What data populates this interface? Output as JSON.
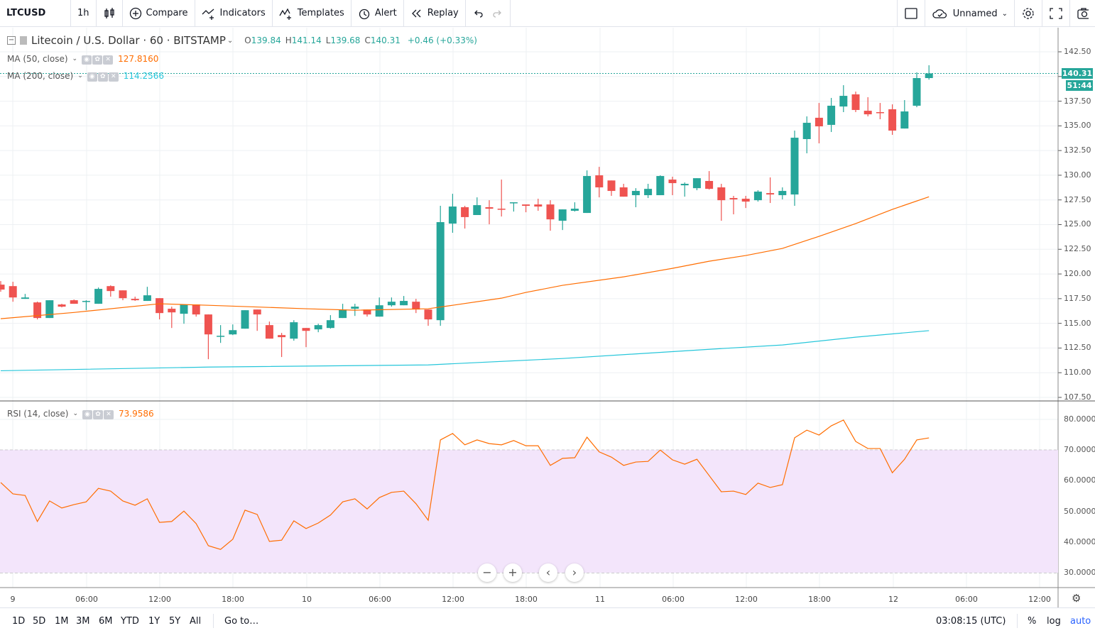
{
  "toolbar": {
    "symbol": "LTCUSD",
    "interval": "1h",
    "compare": "Compare",
    "indicators": "Indicators",
    "templates": "Templates",
    "alert": "Alert",
    "replay": "Replay",
    "layout_name": "Unnamed"
  },
  "legend": {
    "title": "Litecoin / U.S. Dollar · 60 · BITSTAMP",
    "o_label": "O",
    "o": "139.84",
    "h_label": "H",
    "h": "141.14",
    "l_label": "L",
    "l": "139.68",
    "c_label": "C",
    "c": "140.31",
    "change": "+0.46 (+0.33%)",
    "ma50": {
      "label": "MA (50, close)",
      "value": "127.8160",
      "color": "#ff6d00"
    },
    "ma200": {
      "label": "MA (200, close)",
      "value": "114.2566",
      "color": "#26c6da"
    },
    "rsi": {
      "label": "RSI (14, close)",
      "value": "73.9586",
      "color": "#ff6d00"
    }
  },
  "price_axis": [
    "142.50",
    "140.00",
    "137.50",
    "135.00",
    "132.50",
    "130.00",
    "127.50",
    "125.00",
    "122.50",
    "120.00",
    "117.50",
    "115.00",
    "112.50",
    "110.00",
    "107.50"
  ],
  "rsi_axis": [
    "80.0000",
    "70.0000",
    "60.0000",
    "50.0000",
    "40.0000",
    "30.0000"
  ],
  "last_price": {
    "value": "140.31",
    "countdown": "51:44"
  },
  "time_axis": [
    "9",
    "06:00",
    "12:00",
    "18:00",
    "10",
    "06:00",
    "12:00",
    "18:00",
    "11",
    "06:00",
    "12:00",
    "18:00",
    "12",
    "06:00",
    "12:00"
  ],
  "colors": {
    "up": "#26a69a",
    "down": "#ef5350",
    "rsi_band": "#f3e5fb"
  },
  "chart_data": {
    "type": "candlestick",
    "interval": "60",
    "first_candle": "8 23:00",
    "price_range": [
      107.5,
      142.5
    ],
    "ohlc": [
      [
        118.92,
        119.28,
        118.2,
        118.42
      ],
      [
        118.77,
        119.21,
        117.19,
        117.62
      ],
      [
        117.48,
        117.98,
        117.48,
        117.62
      ],
      [
        117.12,
        117.2,
        115.4,
        115.54
      ],
      [
        115.54,
        117.34,
        115.54,
        117.34
      ],
      [
        116.91,
        116.98,
        116.62,
        116.69
      ],
      [
        117.34,
        117.41,
        116.98,
        116.98
      ],
      [
        117.19,
        117.34,
        116.33,
        117.27
      ],
      [
        116.98,
        118.63,
        116.98,
        118.49
      ],
      [
        118.77,
        118.85,
        117.7,
        118.27
      ],
      [
        118.34,
        118.34,
        117.34,
        117.55
      ],
      [
        117.48,
        117.7,
        117.27,
        117.34
      ],
      [
        117.27,
        118.7,
        117.27,
        117.84
      ],
      [
        117.55,
        117.55,
        115.4,
        116.04
      ],
      [
        116.48,
        116.69,
        114.53,
        116.11
      ],
      [
        115.97,
        116.91,
        114.96,
        116.91
      ],
      [
        116.91,
        116.91,
        115.68,
        115.9
      ],
      [
        115.9,
        115.9,
        111.37,
        113.88
      ],
      [
        113.67,
        114.82,
        113.02,
        113.74
      ],
      [
        113.88,
        114.89,
        113.81,
        114.31
      ],
      [
        114.46,
        116.33,
        114.46,
        116.33
      ],
      [
        116.4,
        116.4,
        114.24,
        115.9
      ],
      [
        114.82,
        115.18,
        113.45,
        113.45
      ],
      [
        113.81,
        114.03,
        111.59,
        113.6
      ],
      [
        113.45,
        115.32,
        113.24,
        115.11
      ],
      [
        114.53,
        114.53,
        112.59,
        114.24
      ],
      [
        114.39,
        114.96,
        114.1,
        114.82
      ],
      [
        114.53,
        115.83,
        114.46,
        115.32
      ],
      [
        115.54,
        116.98,
        115.54,
        116.4
      ],
      [
        116.48,
        116.98,
        115.75,
        116.69
      ],
      [
        116.4,
        116.4,
        115.68,
        115.9
      ],
      [
        115.68,
        117.62,
        115.68,
        116.83
      ],
      [
        116.83,
        117.62,
        116.69,
        117.19
      ],
      [
        116.83,
        117.77,
        116.83,
        117.27
      ],
      [
        117.19,
        117.48,
        116.04,
        116.4
      ],
      [
        116.4,
        116.4,
        114.75,
        115.4
      ],
      [
        115.32,
        126.9,
        114.75,
        125.25
      ],
      [
        125.1,
        128.12,
        124.17,
        126.83
      ],
      [
        126.76,
        126.9,
        124.6,
        125.76
      ],
      [
        125.97,
        127.76,
        125.97,
        126.97
      ],
      [
        126.76,
        127.47,
        125.03,
        126.61
      ],
      [
        126.61,
        129.56,
        125.82,
        126.54
      ],
      [
        127.19,
        127.26,
        126.32,
        127.26
      ],
      [
        127.04,
        127.04,
        126.25,
        126.9
      ],
      [
        127.04,
        127.62,
        126.4,
        126.83
      ],
      [
        127.04,
        127.47,
        124.38,
        125.53
      ],
      [
        125.39,
        126.54,
        124.45,
        126.54
      ],
      [
        126.4,
        127.26,
        126.32,
        126.61
      ],
      [
        126.18,
        130.49,
        126.18,
        129.92
      ],
      [
        129.99,
        130.85,
        127.76,
        128.77
      ],
      [
        129.47,
        129.47,
        127.91,
        128.41
      ],
      [
        128.77,
        129.13,
        127.83,
        127.83
      ],
      [
        127.98,
        128.69,
        126.76,
        128.41
      ],
      [
        127.98,
        129.13,
        127.69,
        128.62
      ],
      [
        127.98,
        129.99,
        127.98,
        129.92
      ],
      [
        129.56,
        129.85,
        127.98,
        129.2
      ],
      [
        128.98,
        129.27,
        127.83,
        129.13
      ],
      [
        128.69,
        129.7,
        128.48,
        129.7
      ],
      [
        129.42,
        130.42,
        128.55,
        128.62
      ],
      [
        128.77,
        129.13,
        125.39,
        127.47
      ],
      [
        127.69,
        127.91,
        126.04,
        127.55
      ],
      [
        127.62,
        127.91,
        126.68,
        127.33
      ],
      [
        127.47,
        128.48,
        127.33,
        128.34
      ],
      [
        128.19,
        129.78,
        127.19,
        128.05
      ],
      [
        127.98,
        128.77,
        127.55,
        128.41
      ],
      [
        128.05,
        134.52,
        126.9,
        133.8
      ],
      [
        133.66,
        135.96,
        132.22,
        135.31
      ],
      [
        135.82,
        137.32,
        133.23,
        134.95
      ],
      [
        135.1,
        137.83,
        134.38,
        137.04
      ],
      [
        136.96,
        139.12,
        136.39,
        138.04
      ],
      [
        138.19,
        138.47,
        136.39,
        136.61
      ],
      [
        136.53,
        137.9,
        135.96,
        136.17
      ],
      [
        136.39,
        137.32,
        135.67,
        136.32
      ],
      [
        136.68,
        137.18,
        134.09,
        134.52
      ],
      [
        134.73,
        137.61,
        134.73,
        136.46
      ],
      [
        137.04,
        140.42,
        136.89,
        139.84
      ],
      [
        139.84,
        141.14,
        139.68,
        140.31
      ]
    ],
    "ma50": [
      [
        0,
        115.47
      ],
      [
        6,
        116.1
      ],
      [
        13,
        116.98
      ],
      [
        17,
        116.83
      ],
      [
        25,
        116.48
      ],
      [
        29,
        116.33
      ],
      [
        35,
        116.48
      ],
      [
        37,
        116.83
      ],
      [
        41,
        117.55
      ],
      [
        43,
        118.13
      ],
      [
        46,
        118.85
      ],
      [
        51,
        119.71
      ],
      [
        55,
        120.57
      ],
      [
        58,
        121.29
      ],
      [
        61,
        121.87
      ],
      [
        64,
        122.59
      ],
      [
        67,
        123.81
      ],
      [
        70,
        125.1
      ],
      [
        73,
        126.54
      ],
      [
        76,
        127.82
      ]
    ],
    "ma200": [
      [
        0,
        110.2
      ],
      [
        17,
        110.57
      ],
      [
        35,
        110.79
      ],
      [
        46,
        111.44
      ],
      [
        58,
        112.37
      ],
      [
        64,
        112.81
      ],
      [
        70,
        113.6
      ],
      [
        76,
        114.26
      ]
    ],
    "rsi": [
      59.4,
      55.7,
      55.2,
      46.7,
      53.4,
      51.1,
      52.2,
      53.1,
      57.5,
      56.6,
      53.4,
      52.0,
      54.1,
      46.4,
      46.7,
      50.1,
      46.0,
      38.8,
      37.6,
      40.9,
      50.4,
      49.0,
      40.2,
      40.6,
      46.9,
      44.4,
      46.2,
      48.8,
      53.1,
      54.1,
      50.8,
      54.5,
      56.2,
      56.6,
      52.5,
      47.1,
      73.3,
      75.4,
      71.7,
      73.3,
      72.1,
      71.7,
      73.1,
      71.4,
      71.4,
      65.0,
      67.3,
      67.5,
      74.2,
      69.4,
      67.7,
      65.0,
      66.1,
      66.3,
      70.0,
      66.8,
      65.4,
      67.0,
      61.7,
      56.4,
      56.6,
      55.5,
      59.2,
      57.8,
      58.7,
      74.0,
      76.5,
      74.9,
      77.9,
      79.8,
      72.8,
      70.5,
      70.5,
      62.6,
      67.0,
      73.3,
      73.96
    ],
    "rsi_range": [
      27,
      83
    ],
    "rsi_band": [
      30,
      70
    ]
  },
  "bottom": {
    "ranges": [
      "1D",
      "5D",
      "1M",
      "3M",
      "6M",
      "YTD",
      "1Y",
      "5Y",
      "All"
    ],
    "goto": "Go to…",
    "clock": "03:08:15 (UTC)",
    "percent": "%",
    "log": "log",
    "auto": "auto"
  }
}
